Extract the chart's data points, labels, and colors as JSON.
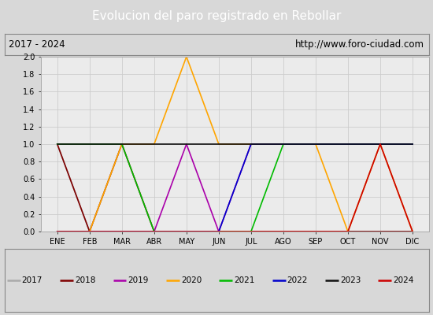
{
  "title": "Evolucion del paro registrado en Rebollar",
  "subtitle_left": "2017 - 2024",
  "subtitle_right": "http://www.foro-ciudad.com",
  "title_bg": "#4472a8",
  "title_color": "white",
  "subtitle_bg": "#d8d8d8",
  "axes_bg": "#ebebeb",
  "months": [
    "ENE",
    "FEB",
    "MAR",
    "ABR",
    "MAY",
    "JUN",
    "JUL",
    "AGO",
    "SEP",
    "OCT",
    "NOV",
    "DIC"
  ],
  "ylim": [
    0.0,
    2.0
  ],
  "yticks": [
    0.0,
    0.2,
    0.4,
    0.6,
    0.8,
    1.0,
    1.2,
    1.4,
    1.6,
    1.8,
    2.0
  ],
  "series": {
    "2017": {
      "color": "#aaaaaa",
      "data": [
        1,
        0,
        0,
        0,
        0,
        0,
        0,
        0,
        0,
        0,
        0,
        0
      ]
    },
    "2018": {
      "color": "#800000",
      "data": [
        1,
        0,
        1,
        0,
        0,
        0,
        0,
        0,
        0,
        0,
        0,
        0
      ]
    },
    "2019": {
      "color": "#aa00aa",
      "data": [
        0,
        0,
        0,
        0,
        1,
        0,
        1,
        1,
        1,
        1,
        1,
        1
      ]
    },
    "2020": {
      "color": "#ffa500",
      "data": [
        0,
        0,
        1,
        1,
        2,
        1,
        1,
        1,
        1,
        0,
        1,
        0
      ]
    },
    "2021": {
      "color": "#00bb00",
      "data": [
        1,
        1,
        1,
        0,
        0,
        0,
        0,
        1,
        1,
        1,
        1,
        1
      ]
    },
    "2022": {
      "color": "#0000cc",
      "data": [
        0,
        0,
        0,
        0,
        0,
        0,
        1,
        1,
        1,
        1,
        1,
        1
      ]
    },
    "2023": {
      "color": "#111111",
      "data": [
        1,
        1,
        1,
        1,
        1,
        1,
        1,
        1,
        1,
        1,
        1,
        1
      ]
    },
    "2024": {
      "color": "#cc0000",
      "data": [
        0,
        0,
        0,
        0,
        0,
        0,
        0,
        0,
        0,
        0,
        1,
        0
      ]
    }
  },
  "legend_order": [
    "2017",
    "2018",
    "2019",
    "2020",
    "2021",
    "2022",
    "2023",
    "2024"
  ]
}
